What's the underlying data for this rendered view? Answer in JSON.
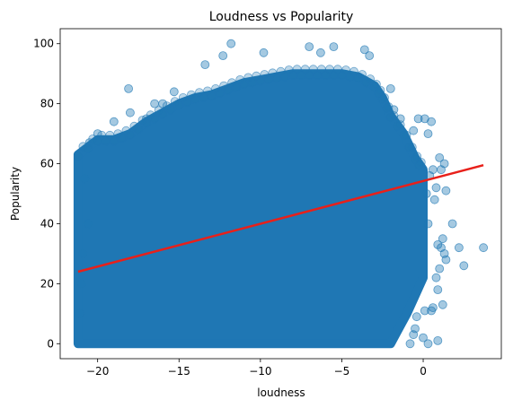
{
  "chart_data": {
    "type": "scatter",
    "title": "Loudness vs Popularity",
    "xlabel": "loudness",
    "ylabel": "Popularity",
    "xlim": [
      -22.3,
      4.8
    ],
    "ylim": [
      -5,
      105
    ],
    "x_ticks": [
      -20,
      -15,
      -10,
      -5,
      0
    ],
    "y_ticks": [
      0,
      20,
      40,
      60,
      80,
      100
    ],
    "x_tick_labels": [
      "−20",
      "−15",
      "−10",
      "−5",
      "0"
    ],
    "y_tick_labels": [
      "0",
      "20",
      "40",
      "60",
      "80",
      "100"
    ],
    "grid": false,
    "legend": "none",
    "point_color": "#1f77b4",
    "point_alpha": 0.3,
    "regression_color": "#e8201a",
    "regression_line": {
      "x": [
        -21.2,
        3.7
      ],
      "y": [
        24,
        59.5
      ]
    },
    "envelope_upper": [
      [
        -21.2,
        63
      ],
      [
        -20.0,
        68
      ],
      [
        -19.0,
        68
      ],
      [
        -18.0,
        70
      ],
      [
        -17.0,
        74
      ],
      [
        -16.0,
        77
      ],
      [
        -15.0,
        80
      ],
      [
        -14.0,
        82
      ],
      [
        -13.0,
        83
      ],
      [
        -12.0,
        85
      ],
      [
        -11.0,
        87
      ],
      [
        -10.0,
        88
      ],
      [
        -9.0,
        89
      ],
      [
        -8.0,
        90
      ],
      [
        -7.0,
        90
      ],
      [
        -6.0,
        90
      ],
      [
        -5.0,
        90
      ],
      [
        -4.0,
        89
      ],
      [
        -3.0,
        86
      ],
      [
        -2.5,
        82
      ],
      [
        -2.0,
        76
      ],
      [
        -1.2,
        70
      ],
      [
        -0.5,
        62
      ],
      [
        0.0,
        58
      ]
    ],
    "envelope_lower_right": [
      [
        -21.2,
        0
      ],
      [
        -2.0,
        0
      ],
      [
        -1.6,
        4
      ],
      [
        -1.0,
        10
      ],
      [
        -0.5,
        16
      ],
      [
        0.0,
        22
      ],
      [
        0.0,
        58
      ]
    ],
    "outliers": [
      [
        -11.8,
        100
      ],
      [
        -7.0,
        99
      ],
      [
        -5.5,
        99
      ],
      [
        -3.6,
        98
      ],
      [
        -9.8,
        97
      ],
      [
        -6.3,
        97
      ],
      [
        -3.3,
        96
      ],
      [
        -12.3,
        96
      ],
      [
        -13.4,
        93
      ],
      [
        -18.1,
        85
      ],
      [
        -15.3,
        84
      ],
      [
        -13.0,
        83
      ],
      [
        -16.0,
        80
      ],
      [
        -16.5,
        80
      ],
      [
        -17.0,
        75
      ],
      [
        -18.0,
        77
      ],
      [
        -19.0,
        74
      ],
      [
        -20.0,
        70
      ],
      [
        -20.5,
        67
      ],
      [
        -2.0,
        85
      ],
      [
        -1.8,
        78
      ],
      [
        -1.4,
        75
      ],
      [
        -0.3,
        75
      ],
      [
        0.1,
        75
      ],
      [
        0.5,
        74
      ],
      [
        -0.6,
        71
      ],
      [
        0.3,
        70
      ],
      [
        1.0,
        62
      ],
      [
        1.3,
        60
      ],
      [
        0.6,
        58
      ],
      [
        1.1,
        58
      ],
      [
        0.4,
        56
      ],
      [
        0.8,
        52
      ],
      [
        1.4,
        51
      ],
      [
        0.2,
        50
      ],
      [
        0.7,
        48
      ],
      [
        1.8,
        40
      ],
      [
        0.3,
        40
      ],
      [
        1.2,
        35
      ],
      [
        0.9,
        33
      ],
      [
        3.7,
        32
      ],
      [
        1.1,
        32
      ],
      [
        2.2,
        32
      ],
      [
        1.3,
        30
      ],
      [
        1.4,
        28
      ],
      [
        2.5,
        26
      ],
      [
        1.0,
        25
      ],
      [
        0.8,
        22
      ],
      [
        0.9,
        18
      ],
      [
        1.2,
        13
      ],
      [
        0.6,
        12
      ],
      [
        0.5,
        11
      ],
      [
        0.1,
        11
      ],
      [
        -0.4,
        9
      ],
      [
        -0.5,
        5
      ],
      [
        -0.6,
        3
      ],
      [
        0.9,
        1
      ],
      [
        -0.8,
        0
      ],
      [
        0.3,
        0
      ],
      [
        0.0,
        2
      ],
      [
        -20.6,
        40
      ],
      [
        -20.8,
        55
      ],
      [
        -21.1,
        10
      ],
      [
        -21.0,
        20
      ],
      [
        -20.9,
        30
      ]
    ]
  }
}
